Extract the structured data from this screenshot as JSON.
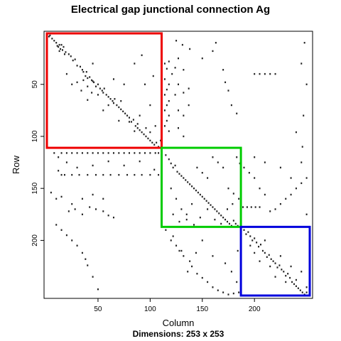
{
  "chart_data": {
    "type": "scatter",
    "title": "Electrical gap junctional connection Ag",
    "xlabel": "Column",
    "ylabel": "Row",
    "subtitle_label": "Dimensions: 253 x 253",
    "xlim": [
      1,
      253
    ],
    "ylim": [
      253,
      1
    ],
    "x_ticks": [
      50,
      100,
      150,
      200
    ],
    "y_ticks": [
      50,
      100,
      150,
      200
    ],
    "grid": false,
    "point_color": "#222222",
    "blocks": [
      {
        "color": "#ee0000",
        "x": [
          1,
          111
        ],
        "y": [
          1,
          111
        ]
      },
      {
        "color": "#00cc00",
        "x": [
          111,
          187
        ],
        "y": [
          111,
          187
        ]
      },
      {
        "color": "#0000dd",
        "x": [
          187,
          253
        ],
        "y": [
          187,
          253
        ]
      }
    ],
    "points": [
      [
        3,
        4
      ],
      [
        4,
        3
      ],
      [
        6,
        6
      ],
      [
        8,
        8
      ],
      [
        10,
        10
      ],
      [
        11,
        13
      ],
      [
        12,
        14
      ],
      [
        13,
        12
      ],
      [
        14,
        16
      ],
      [
        15,
        12
      ],
      [
        16,
        17
      ],
      [
        13,
        18
      ],
      [
        17,
        14
      ],
      [
        18,
        21
      ],
      [
        19,
        19
      ],
      [
        22,
        21
      ],
      [
        24,
        23
      ],
      [
        26,
        27
      ],
      [
        28,
        26
      ],
      [
        30,
        32
      ],
      [
        33,
        33
      ],
      [
        35,
        36
      ],
      [
        36,
        38
      ],
      [
        38,
        42
      ],
      [
        39,
        38
      ],
      [
        40,
        44
      ],
      [
        42,
        43
      ],
      [
        44,
        46
      ],
      [
        45,
        47
      ],
      [
        46,
        48
      ],
      [
        48,
        52
      ],
      [
        50,
        50
      ],
      [
        52,
        54
      ],
      [
        54,
        56
      ],
      [
        55,
        58
      ],
      [
        58,
        60
      ],
      [
        60,
        62
      ],
      [
        62,
        64
      ],
      [
        64,
        66
      ],
      [
        65,
        68
      ],
      [
        68,
        70
      ],
      [
        70,
        72
      ],
      [
        72,
        74
      ],
      [
        74,
        76
      ],
      [
        76,
        78
      ],
      [
        78,
        80
      ],
      [
        80,
        82
      ],
      [
        82,
        86
      ],
      [
        84,
        84
      ],
      [
        86,
        90
      ],
      [
        88,
        92
      ],
      [
        90,
        94
      ],
      [
        92,
        96
      ],
      [
        94,
        98
      ],
      [
        96,
        100
      ],
      [
        98,
        102
      ],
      [
        100,
        104
      ],
      [
        102,
        106
      ],
      [
        104,
        108
      ],
      [
        106,
        106
      ],
      [
        108,
        110
      ],
      [
        110,
        104
      ],
      [
        30,
        48
      ],
      [
        34,
        56
      ],
      [
        36,
        46
      ],
      [
        40,
        52
      ],
      [
        44,
        58
      ],
      [
        50,
        60
      ],
      [
        56,
        54
      ],
      [
        60,
        70
      ],
      [
        66,
        64
      ],
      [
        72,
        66
      ],
      [
        80,
        86
      ],
      [
        88,
        88
      ],
      [
        96,
        92
      ],
      [
        25,
        50
      ],
      [
        40,
        65
      ],
      [
        55,
        75
      ],
      [
        70,
        85
      ],
      [
        85,
        95
      ],
      [
        20,
        40
      ],
      [
        45,
        30
      ],
      [
        65,
        45
      ],
      [
        75,
        50
      ],
      [
        90,
        80
      ],
      [
        100,
        96
      ],
      [
        114,
        30
      ],
      [
        114,
        45
      ],
      [
        114,
        60
      ],
      [
        114,
        75
      ],
      [
        114,
        90
      ],
      [
        116,
        35
      ],
      [
        116,
        55
      ],
      [
        116,
        70
      ],
      [
        116,
        85
      ],
      [
        118,
        28
      ],
      [
        118,
        50
      ],
      [
        118,
        66
      ],
      [
        118,
        80
      ],
      [
        118,
        95
      ],
      [
        121,
        40
      ],
      [
        124,
        34
      ],
      [
        124,
        60
      ],
      [
        127,
        25
      ],
      [
        127,
        50
      ],
      [
        127,
        75
      ],
      [
        127,
        92
      ],
      [
        132,
        36
      ],
      [
        132,
        58
      ],
      [
        132,
        80
      ],
      [
        132,
        100
      ],
      [
        137,
        54
      ],
      [
        137,
        70
      ],
      [
        85,
        30
      ],
      [
        95,
        50
      ],
      [
        100,
        70
      ],
      [
        105,
        90
      ],
      [
        92,
        22
      ],
      [
        103,
        42
      ],
      [
        125,
        8
      ],
      [
        131,
        12
      ],
      [
        138,
        16
      ],
      [
        150,
        25
      ],
      [
        160,
        18
      ],
      [
        163,
        10
      ],
      [
        170,
        36
      ],
      [
        172,
        48
      ],
      [
        175,
        56
      ],
      [
        178,
        70
      ],
      [
        183,
        78
      ],
      [
        200,
        40
      ],
      [
        205,
        40
      ],
      [
        210,
        40
      ],
      [
        215,
        40
      ],
      [
        220,
        40
      ],
      [
        248,
        10
      ],
      [
        245,
        30
      ],
      [
        250,
        50
      ],
      [
        247,
        80
      ],
      [
        240,
        96
      ],
      [
        246,
        110
      ],
      [
        8,
        116
      ],
      [
        12,
        120
      ],
      [
        15,
        116
      ],
      [
        20,
        116
      ],
      [
        25,
        116
      ],
      [
        30,
        116
      ],
      [
        35,
        116
      ],
      [
        40,
        116
      ],
      [
        45,
        116
      ],
      [
        50,
        116
      ],
      [
        55,
        116
      ],
      [
        60,
        116
      ],
      [
        65,
        116
      ],
      [
        70,
        116
      ],
      [
        75,
        116
      ],
      [
        80,
        116
      ],
      [
        85,
        116
      ],
      [
        90,
        116
      ],
      [
        95,
        116
      ],
      [
        100,
        116
      ],
      [
        105,
        116
      ],
      [
        108,
        116
      ],
      [
        12,
        133
      ],
      [
        15,
        137
      ],
      [
        18,
        137
      ],
      [
        25,
        137
      ],
      [
        32,
        137
      ],
      [
        40,
        137
      ],
      [
        48,
        137
      ],
      [
        55,
        137
      ],
      [
        62,
        137
      ],
      [
        70,
        137
      ],
      [
        78,
        137
      ],
      [
        85,
        137
      ],
      [
        92,
        137
      ],
      [
        100,
        137
      ],
      [
        108,
        137
      ],
      [
        20,
        125
      ],
      [
        30,
        130
      ],
      [
        45,
        128
      ],
      [
        60,
        124
      ],
      [
        75,
        128
      ],
      [
        90,
        124
      ],
      [
        104,
        132
      ],
      [
        5,
        154
      ],
      [
        10,
        160
      ],
      [
        15,
        158
      ],
      [
        22,
        172
      ],
      [
        28,
        170
      ],
      [
        35,
        175
      ],
      [
        42,
        168
      ],
      [
        48,
        170
      ],
      [
        55,
        172
      ],
      [
        60,
        176
      ],
      [
        65,
        178
      ],
      [
        10,
        185
      ],
      [
        15,
        190
      ],
      [
        20,
        195
      ],
      [
        25,
        200
      ],
      [
        30,
        205
      ],
      [
        35,
        212
      ],
      [
        38,
        218
      ],
      [
        40,
        224
      ],
      [
        45,
        235
      ],
      [
        50,
        247
      ],
      [
        25,
        165
      ],
      [
        35,
        160
      ],
      [
        45,
        156
      ],
      [
        55,
        160
      ],
      [
        115,
        118
      ],
      [
        118,
        122
      ],
      [
        120,
        126
      ],
      [
        122,
        130
      ],
      [
        124,
        128
      ],
      [
        126,
        134
      ],
      [
        128,
        136
      ],
      [
        130,
        138
      ],
      [
        132,
        140
      ],
      [
        134,
        142
      ],
      [
        136,
        144
      ],
      [
        138,
        146
      ],
      [
        140,
        148
      ],
      [
        142,
        150
      ],
      [
        144,
        152
      ],
      [
        146,
        154
      ],
      [
        148,
        156
      ],
      [
        150,
        158
      ],
      [
        152,
        160
      ],
      [
        154,
        162
      ],
      [
        156,
        164
      ],
      [
        158,
        166
      ],
      [
        160,
        168
      ],
      [
        162,
        170
      ],
      [
        164,
        172
      ],
      [
        166,
        174
      ],
      [
        168,
        176
      ],
      [
        170,
        178
      ],
      [
        172,
        180
      ],
      [
        174,
        182
      ],
      [
        176,
        184
      ],
      [
        178,
        186
      ],
      [
        180,
        181
      ],
      [
        182,
        184
      ],
      [
        184,
        186
      ],
      [
        120,
        150
      ],
      [
        125,
        160
      ],
      [
        130,
        170
      ],
      [
        135,
        175
      ],
      [
        140,
        165
      ],
      [
        145,
        130
      ],
      [
        150,
        135
      ],
      [
        155,
        140
      ],
      [
        160,
        120
      ],
      [
        165,
        125
      ],
      [
        170,
        130
      ],
      [
        175,
        150
      ],
      [
        180,
        155
      ],
      [
        185,
        160
      ],
      [
        122,
        175
      ],
      [
        128,
        182
      ],
      [
        135,
        180
      ],
      [
        142,
        185
      ],
      [
        148,
        178
      ],
      [
        155,
        170
      ],
      [
        162,
        180
      ],
      [
        168,
        184
      ],
      [
        174,
        170
      ],
      [
        179,
        165
      ],
      [
        183,
        120
      ],
      [
        186,
        126
      ],
      [
        189,
        168
      ],
      [
        193,
        168
      ],
      [
        197,
        168
      ],
      [
        201,
        168
      ],
      [
        205,
        168
      ],
      [
        215,
        172
      ],
      [
        220,
        170
      ],
      [
        225,
        165
      ],
      [
        230,
        160
      ],
      [
        235,
        156
      ],
      [
        240,
        150
      ],
      [
        245,
        145
      ],
      [
        250,
        140
      ],
      [
        205,
        150
      ],
      [
        210,
        156
      ],
      [
        200,
        140
      ],
      [
        195,
        135
      ],
      [
        190,
        130
      ],
      [
        200,
        120
      ],
      [
        210,
        125
      ],
      [
        225,
        130
      ],
      [
        235,
        140
      ],
      [
        245,
        125
      ],
      [
        250,
        175
      ],
      [
        115,
        190
      ],
      [
        120,
        200
      ],
      [
        125,
        205
      ],
      [
        130,
        210
      ],
      [
        132,
        215
      ],
      [
        138,
        220
      ],
      [
        140,
        225
      ],
      [
        145,
        232
      ],
      [
        150,
        236
      ],
      [
        155,
        240
      ],
      [
        160,
        245
      ],
      [
        165,
        248
      ],
      [
        170,
        250
      ],
      [
        175,
        252
      ],
      [
        180,
        251
      ],
      [
        185,
        250
      ],
      [
        122,
        196
      ],
      [
        128,
        210
      ],
      [
        136,
        230
      ],
      [
        144,
        212
      ],
      [
        150,
        200
      ],
      [
        160,
        215
      ],
      [
        172,
        222
      ],
      [
        178,
        230
      ],
      [
        183,
        240
      ],
      [
        184,
        210
      ],
      [
        190,
        190
      ],
      [
        192,
        194
      ],
      [
        194,
        192
      ],
      [
        196,
        196
      ],
      [
        198,
        200
      ],
      [
        200,
        198
      ],
      [
        202,
        202
      ],
      [
        204,
        206
      ],
      [
        206,
        204
      ],
      [
        208,
        210
      ],
      [
        210,
        212
      ],
      [
        212,
        216
      ],
      [
        214,
        214
      ],
      [
        216,
        218
      ],
      [
        218,
        220
      ],
      [
        220,
        222
      ],
      [
        222,
        226
      ],
      [
        224,
        224
      ],
      [
        226,
        228
      ],
      [
        228,
        230
      ],
      [
        230,
        234
      ],
      [
        232,
        232
      ],
      [
        234,
        236
      ],
      [
        236,
        240
      ],
      [
        238,
        242
      ],
      [
        240,
        244
      ],
      [
        242,
        246
      ],
      [
        244,
        248
      ],
      [
        246,
        250
      ],
      [
        248,
        252
      ],
      [
        250,
        250
      ],
      [
        252,
        253
      ],
      [
        196,
        205
      ],
      [
        200,
        212
      ],
      [
        205,
        220
      ],
      [
        210,
        200
      ],
      [
        215,
        225
      ],
      [
        220,
        235
      ],
      [
        225,
        215
      ],
      [
        230,
        240
      ],
      [
        235,
        225
      ],
      [
        240,
        238
      ],
      [
        245,
        230
      ],
      [
        250,
        245
      ],
      [
        253,
        253
      ]
    ]
  }
}
